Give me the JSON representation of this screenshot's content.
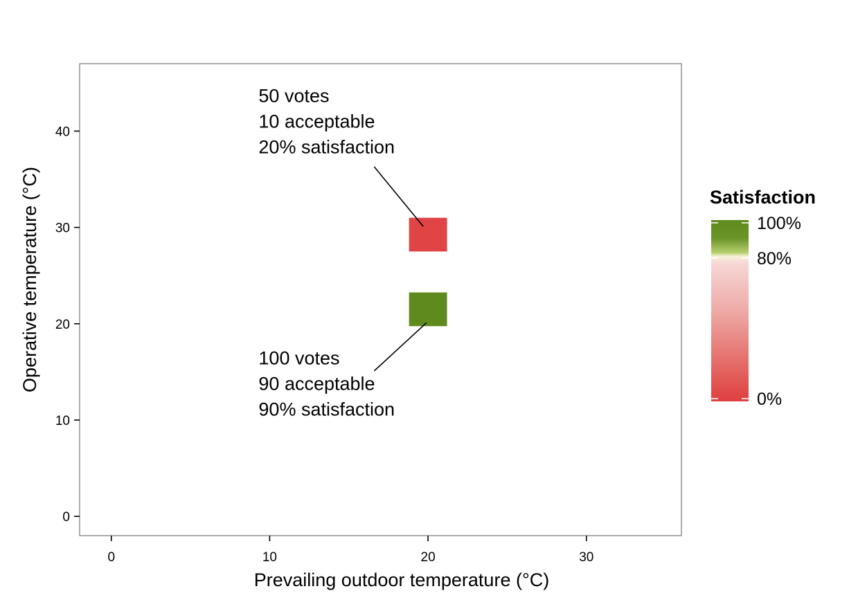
{
  "chart_data": {
    "type": "heatmap",
    "title": "",
    "xlabel": "Prevailing outdoor temperature (°C)",
    "ylabel": "Operative temperature (°C)",
    "xlim": [
      -2,
      36
    ],
    "ylim": [
      -2,
      47
    ],
    "x_ticks": [
      0,
      10,
      20,
      30
    ],
    "y_ticks": [
      0,
      10,
      20,
      30,
      40
    ],
    "grid": false,
    "tiles": [
      {
        "x": 20,
        "y": 29.25,
        "width": 2.4,
        "height": 3.5,
        "satisfaction": 20,
        "votes": 50,
        "acceptable": 10,
        "color": "#e04444"
      },
      {
        "x": 20,
        "y": 21.5,
        "width": 2.4,
        "height": 3.5,
        "satisfaction": 90,
        "votes": 100,
        "acceptable": 90,
        "color": "#5e8a1e"
      }
    ],
    "annotations": [
      {
        "lines": [
          "50 votes",
          "10 acceptable",
          "20% satisfaction"
        ],
        "text_x": 9.3,
        "text_y": 43,
        "arrow_from": [
          16.6,
          36.3
        ],
        "arrow_to": [
          19.7,
          30.1
        ]
      },
      {
        "lines": [
          "100 votes",
          "90 acceptable",
          "90% satisfaction"
        ],
        "text_x": 9.3,
        "text_y": 15.8,
        "arrow_from": [
          16.6,
          15.1
        ],
        "arrow_to": [
          19.9,
          20.1
        ]
      }
    ],
    "legend": {
      "title": "Satisfaction",
      "placement": "right",
      "ticks": [
        {
          "value": 100,
          "label": "100%"
        },
        {
          "value": 80,
          "label": "80%"
        },
        {
          "value": 0,
          "label": "0%"
        }
      ],
      "gradient": [
        {
          "value": 100,
          "color": "#5e8a1e"
        },
        {
          "value": 90,
          "color": "#6a9428"
        },
        {
          "value": 82,
          "color": "#b7cf6e"
        },
        {
          "value": 80,
          "color": "#f7f1d8"
        },
        {
          "value": 76,
          "color": "#f6d7d5"
        },
        {
          "value": 50,
          "color": "#eeaaa6"
        },
        {
          "value": 20,
          "color": "#e46a66"
        },
        {
          "value": 0,
          "color": "#df3f3f"
        }
      ]
    }
  }
}
